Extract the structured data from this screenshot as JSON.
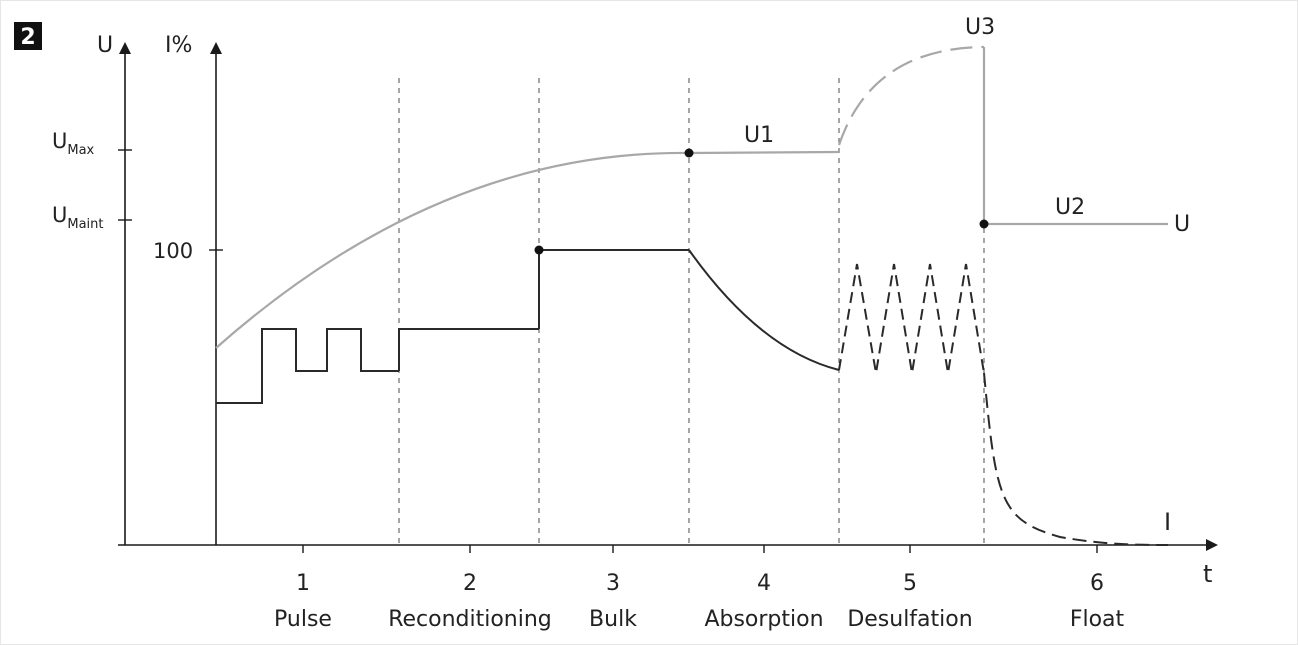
{
  "figure_badge": "2",
  "chart_data": {
    "type": "line",
    "title": "",
    "axes": {
      "voltage_axis_label": "U",
      "current_axis_label": "I%",
      "time_axis_label": "t",
      "voltage_ticks": [
        {
          "main": "U",
          "sub": "Max"
        },
        {
          "main": "U",
          "sub": "Maint"
        }
      ],
      "current_ticks": [
        "100"
      ]
    },
    "stages": [
      {
        "number": "1",
        "name": "Pulse"
      },
      {
        "number": "2",
        "name": "Reconditioning"
      },
      {
        "number": "3",
        "name": "Bulk"
      },
      {
        "number": "4",
        "name": "Absorption"
      },
      {
        "number": "5",
        "name": "Desulfation"
      },
      {
        "number": "6",
        "name": "Float"
      }
    ],
    "curve_labels": {
      "u1": "U1",
      "u2": "U2",
      "u3": "U3",
      "voltage_end": "U",
      "current_end": "I"
    },
    "series": [
      {
        "name": "U",
        "description_values": "rises from stage 1 to UMax at end of Bulk, holds (U1) through Absorption, rises to U3 during Desulfation, drops to U2 for Float"
      },
      {
        "name": "I",
        "description_values": "pulsed in stage 1, constant in Reconditioning, 100% in Bulk, decays in Absorption, oscillates in Desulfation, decays to 0 in Float"
      }
    ],
    "grid": false,
    "legend": "none"
  },
  "colors": {
    "axis": "#1a1a1a",
    "voltage_line": "#a8a8a8",
    "current_line": "#2a2a2a",
    "dashed_divider": "#6a6a6a",
    "badge_bg": "#111111"
  }
}
